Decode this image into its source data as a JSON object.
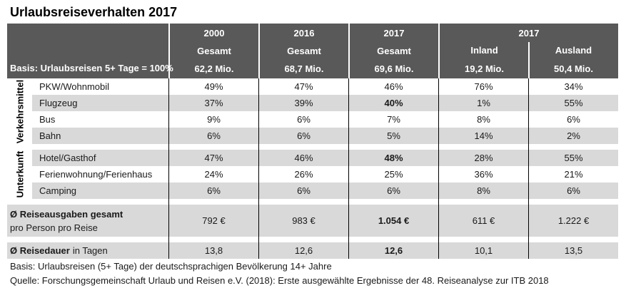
{
  "title": "Urlaubsreiseverhalten 2017",
  "colors": {
    "header_bg": "#595959",
    "header_text": "#FFFFFF",
    "row_shade": "#D9D9D9",
    "grid_line": "#000000",
    "text": "#1A1A1A"
  },
  "chart_data": {
    "type": "table",
    "title": "Urlaubsreiseverhalten 2017",
    "basis": "Basis: Urlaubsreisen 5+ Tage = 100%",
    "columns": [
      {
        "year": "2000",
        "segment": "Gesamt",
        "trips": "62,2 Mio."
      },
      {
        "year": "2016",
        "segment": "Gesamt",
        "trips": "68,7 Mio."
      },
      {
        "year": "2017",
        "segment": "Gesamt",
        "trips": "69,6 Mio."
      },
      {
        "year": "2017",
        "segment": "Inland",
        "trips": "19,2 Mio."
      },
      {
        "year": "2017",
        "segment": "Ausland",
        "trips": "50,4 Mio."
      }
    ],
    "row_groups": [
      {
        "group": "Verkehrsmittel",
        "rows": [
          {
            "label": "PKW/Wohnmobil",
            "values": [
              "49%",
              "47%",
              "46%",
              "76%",
              "34%"
            ]
          },
          {
            "label": "Flugzeug",
            "values": [
              "37%",
              "39%",
              "40%",
              "1%",
              "55%"
            ]
          },
          {
            "label": "Bus",
            "values": [
              "9%",
              "6%",
              "7%",
              "8%",
              "6%"
            ]
          },
          {
            "label": "Bahn",
            "values": [
              "6%",
              "6%",
              "5%",
              "14%",
              "2%"
            ]
          }
        ]
      },
      {
        "group": "Unterkunft",
        "rows": [
          {
            "label": "Hotel/Gasthof",
            "values": [
              "47%",
              "46%",
              "48%",
              "28%",
              "55%"
            ]
          },
          {
            "label": "Ferienwohnung/Ferienhaus",
            "values": [
              "24%",
              "26%",
              "25%",
              "36%",
              "21%"
            ]
          },
          {
            "label": "Camping",
            "values": [
              "6%",
              "6%",
              "6%",
              "8%",
              "6%"
            ]
          }
        ]
      }
    ],
    "summary": [
      {
        "label_main": "Ø Reiseausgaben gesamt",
        "label_sub": "pro Person pro Reise",
        "values": [
          "792 €",
          "983 €",
          "1.054 €",
          "611 €",
          "1.222 €"
        ]
      },
      {
        "label_main": "Ø Reisedauer",
        "label_sub": "in Tagen",
        "values": [
          "13,8",
          "12,6",
          "12,6",
          "10,1",
          "13,5"
        ]
      }
    ],
    "footnotes": [
      "Basis: Urlaubsreisen (5+ Tage) der deutschsprachigen Bevölkerung 14+ Jahre",
      "Quelle: Forschungsgemeinschaft Urlaub und Reisen e.V. (2018): Erste ausgewählte Ergebnisse der 48. Reiseanalyse zur ITB 2018"
    ]
  }
}
